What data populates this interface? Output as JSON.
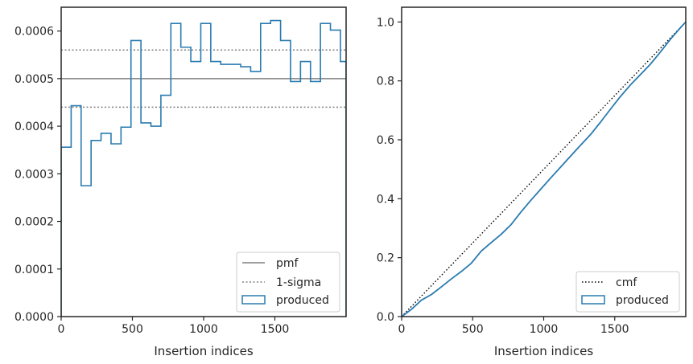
{
  "colors": {
    "produced": "#2a7bb0",
    "pmf": "#808080",
    "sigma": "#808080",
    "cmf": "#000000",
    "axes": "#262626"
  },
  "chart_data": [
    {
      "type": "histogram-step",
      "title": "",
      "xlabel": "Insertion indices",
      "ylabel": "",
      "xlim": [
        0,
        2000
      ],
      "ylim": [
        0,
        0.00065
      ],
      "xticks": [
        0,
        500,
        1000,
        1500
      ],
      "xtick_labels": [
        "0",
        "500",
        "1000",
        "1500"
      ],
      "yticks": [
        0,
        0.0001,
        0.0002,
        0.0003,
        0.0004,
        0.0005,
        0.0006
      ],
      "ytick_labels": [
        "0.0000",
        "0.0001",
        "0.0002",
        "0.0003",
        "0.0004",
        "0.0005",
        "0.0006"
      ],
      "bin_edges": [
        0,
        70,
        140,
        210,
        280,
        350,
        420,
        490,
        560,
        630,
        700,
        770,
        840,
        910,
        980,
        1050,
        1120,
        1190,
        1260,
        1330,
        1400,
        1470,
        1540,
        1610,
        1680,
        1750,
        1820,
        1890,
        1960,
        2000
      ],
      "produced": [
        0.000356,
        0.000443,
        0.000275,
        0.00037,
        0.000385,
        0.000363,
        0.000398,
        0.00058,
        0.000407,
        0.0004,
        0.000465,
        0.000616,
        0.000566,
        0.000536,
        0.000616,
        0.000536,
        0.00053,
        0.00053,
        0.000525,
        0.000515,
        0.000616,
        0.000622,
        0.00058,
        0.000494,
        0.000536,
        0.000494,
        0.000616,
        0.000602,
        0.000536
      ],
      "pmf": 0.0005,
      "sigma_band": [
        0.00044,
        0.00056
      ],
      "legend": [
        "pmf",
        "1-sigma",
        "produced"
      ],
      "legend_position": "lower-right"
    },
    {
      "type": "line",
      "title": "",
      "xlabel": "Insertion indices",
      "ylabel": "",
      "xlim": [
        0,
        2000
      ],
      "ylim": [
        0,
        1.05
      ],
      "xticks": [
        0,
        500,
        1000,
        1500
      ],
      "xtick_labels": [
        "0",
        "500",
        "1000",
        "1500"
      ],
      "yticks": [
        0,
        0.2,
        0.4,
        0.6,
        0.8,
        1.0
      ],
      "ytick_labels": [
        "0.0",
        "0.2",
        "0.4",
        "0.6",
        "0.8",
        "1.0"
      ],
      "cmf": {
        "x": [
          0,
          2000
        ],
        "y": [
          0,
          1
        ]
      },
      "produced": {
        "x": [
          0,
          70,
          140,
          210,
          280,
          350,
          420,
          490,
          560,
          630,
          700,
          770,
          840,
          910,
          980,
          1050,
          1120,
          1190,
          1260,
          1330,
          1400,
          1470,
          1540,
          1610,
          1680,
          1750,
          1820,
          1890,
          1960,
          2000
        ],
        "y": [
          0,
          0.025,
          0.056,
          0.075,
          0.101,
          0.128,
          0.153,
          0.181,
          0.222,
          0.251,
          0.279,
          0.312,
          0.355,
          0.395,
          0.433,
          0.471,
          0.508,
          0.545,
          0.582,
          0.618,
          0.66,
          0.704,
          0.747,
          0.786,
          0.821,
          0.856,
          0.897,
          0.94,
          0.979,
          1.0
        ]
      },
      "legend": [
        "cmf",
        "produced"
      ],
      "legend_position": "lower-right"
    }
  ]
}
